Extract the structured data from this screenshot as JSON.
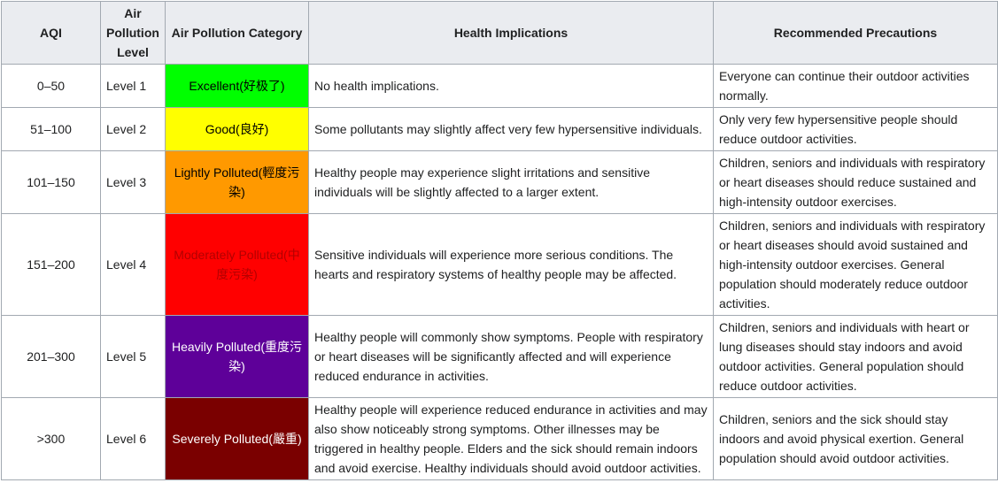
{
  "headers": {
    "aqi": "AQI",
    "level": "Air Pollution Level",
    "category": "Air Pollution Category",
    "health": "Health Implications",
    "precautions": "Recommended Precautions"
  },
  "rows": [
    {
      "aqi": "0–50",
      "level": "Level 1",
      "category": "Excellent(好极了)",
      "category_bg": "#00ff00",
      "category_fg": "#000000",
      "health": "No health implications.",
      "precautions": "Everyone can continue their outdoor activities normally."
    },
    {
      "aqi": "51–100",
      "level": "Level 2",
      "category": "Good(良好)",
      "category_bg": "#ffff00",
      "category_fg": "#000000",
      "health": "Some pollutants may slightly affect very few hypersensitive individuals.",
      "precautions": "Only very few hypersensitive people should reduce outdoor activities."
    },
    {
      "aqi": "101–150",
      "level": "Level 3",
      "category": "Lightly Polluted(輕度污染)",
      "category_bg": "#ff9900",
      "category_fg": "#000000",
      "health": "Healthy people may experience slight irritations and sensitive individuals will be slightly affected to a larger extent.",
      "precautions": "Children, seniors and individuals with respiratory or heart diseases should reduce sustained and high-intensity outdoor exercises."
    },
    {
      "aqi": "151–200",
      "level": "Level 4",
      "category": "Moderately Polluted(中度污染)",
      "category_bg": "#ff0000",
      "category_fg": "#b30000",
      "health": "Sensitive individuals will experience more serious conditions. The hearts and respiratory systems of healthy people may be affected.",
      "precautions": "Children, seniors and individuals with respiratory or heart diseases should avoid sustained and high-intensity outdoor exercises. General population should moderately reduce outdoor activities."
    },
    {
      "aqi": "201–300",
      "level": "Level 5",
      "category": "Heavily Polluted(重度污染)",
      "category_bg": "#5e0099",
      "category_fg": "#ffffff",
      "health": "Healthy people will commonly show symptoms. People with respiratory or heart diseases will be significantly affected and will experience reduced endurance in activities.",
      "precautions": "Children, seniors and individuals with heart or lung diseases should stay indoors and avoid outdoor activities. General population should reduce outdoor activities."
    },
    {
      "aqi": ">300",
      "level": "Level 6",
      "category": "Severely Polluted(嚴重)",
      "category_bg": "#7a0000",
      "category_fg": "#ffffff",
      "health": "Healthy people will experience reduced endurance in activities and may also show noticeably strong symptoms. Other illnesses may be triggered in healthy people. Elders and the sick should remain indoors and avoid exercise. Healthy individuals should avoid outdoor activities.",
      "precautions": "Children, seniors and the sick should stay indoors and avoid physical exertion. General population should avoid outdoor activities."
    }
  ]
}
